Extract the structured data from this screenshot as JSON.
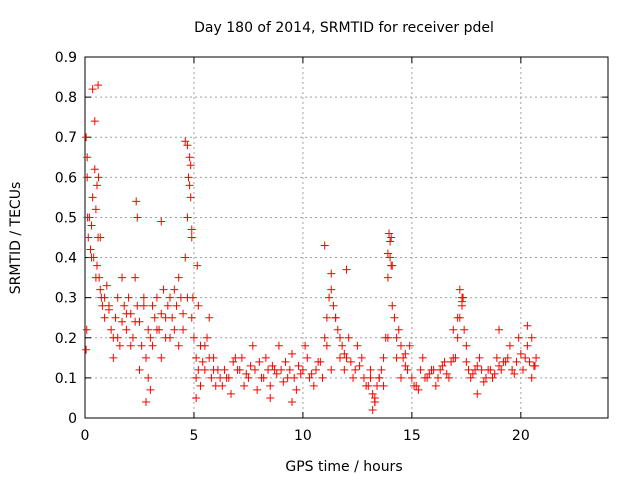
{
  "chart_data": {
    "type": "scatter",
    "title": "Day 180 of 2014, SRMTID for receiver pdel",
    "xlabel": "GPS time / hours",
    "ylabel": "SRMTID / TECUs",
    "xlim": [
      0,
      24
    ],
    "ylim": [
      0,
      0.9
    ],
    "xticks": [
      0,
      5,
      10,
      15,
      20
    ],
    "xtick_labels": [
      "0",
      "5",
      "10",
      "15",
      "20"
    ],
    "yticks": [
      0,
      0.1,
      0.2,
      0.3,
      0.4,
      0.5,
      0.6,
      0.7,
      0.8,
      0.9
    ],
    "ytick_labels": [
      "0",
      "0.1",
      "0.2",
      "0.3",
      "0.4",
      "0.5",
      "0.6",
      "0.7",
      "0.8",
      "0.9"
    ],
    "grid": true,
    "marker": "+",
    "series": [
      {
        "name": "SRMTID",
        "color": "#ff0000",
        "x": [
          0.05,
          0.1,
          0.15,
          0.2,
          0.25,
          0.3,
          0.35,
          0.4,
          0.45,
          0.5,
          0.55,
          0.6,
          0.65,
          0.7,
          0.75,
          0.8,
          0.9,
          1.0,
          1.1,
          1.2,
          1.3,
          1.4,
          1.5,
          1.6,
          1.7,
          1.8,
          1.9,
          2.0,
          2.1,
          2.2,
          2.3,
          2.4,
          2.5,
          2.6,
          2.7,
          2.8,
          2.9,
          3.0,
          3.1,
          3.2,
          3.3,
          3.4,
          3.5,
          3.6,
          3.7,
          3.8,
          3.9,
          4.0,
          4.1,
          4.2,
          4.3,
          4.4,
          4.5,
          4.6,
          4.7,
          4.75,
          4.8,
          4.85,
          4.9,
          4.95,
          5.0,
          5.1,
          5.2,
          5.3,
          5.4,
          5.5,
          5.6,
          5.7,
          5.8,
          5.9,
          6.0,
          6.2,
          6.4,
          6.6,
          6.8,
          7.0,
          7.2,
          7.4,
          7.6,
          7.8,
          8.0,
          8.2,
          8.4,
          8.6,
          8.8,
          9.0,
          9.2,
          9.4,
          9.6,
          9.8,
          10.0,
          10.2,
          10.4,
          10.6,
          10.8,
          11.0,
          11.1,
          11.2,
          11.3,
          11.4,
          11.5,
          11.6,
          11.7,
          11.8,
          11.9,
          12.0,
          12.2,
          12.4,
          12.6,
          12.8,
          13.0,
          13.1,
          13.2,
          13.3,
          13.4,
          13.5,
          13.6,
          13.7,
          13.8,
          13.9,
          14.0,
          14.05,
          14.1,
          14.2,
          14.3,
          14.4,
          14.5,
          14.6,
          14.7,
          14.8,
          15.0,
          15.2,
          15.4,
          15.6,
          15.8,
          16.0,
          16.2,
          16.4,
          16.6,
          16.8,
          17.0,
          17.1,
          17.2,
          17.3,
          17.4,
          17.5,
          17.6,
          17.8,
          18.0,
          18.2,
          18.4,
          18.6,
          18.8,
          19.0,
          19.2,
          19.4,
          19.6,
          19.8,
          20.0,
          20.2,
          20.4,
          20.6,
          20.7,
          0.1,
          0.3,
          0.5,
          0.7,
          0.9,
          1.1,
          1.3,
          1.5,
          1.7,
          1.9,
          2.1,
          2.3,
          2.5,
          2.7,
          2.9,
          3.1,
          3.3,
          3.5,
          3.7,
          3.9,
          4.1,
          4.3,
          4.5,
          4.7,
          4.9,
          5.1,
          5.3,
          5.5,
          5.7,
          5.9,
          6.1,
          6.3,
          6.5,
          6.7,
          6.9,
          7.1,
          7.3,
          7.5,
          7.7,
          7.9,
          8.1,
          8.3,
          8.5,
          8.7,
          8.9,
          9.1,
          9.3,
          9.5,
          9.7,
          9.9,
          10.1,
          10.3,
          10.5,
          10.7,
          10.9,
          11.1,
          11.3,
          11.5,
          11.7,
          11.9,
          12.1,
          12.3,
          12.5,
          12.7,
          12.9,
          13.1,
          13.3,
          13.5,
          13.7,
          13.9,
          14.1,
          14.3,
          14.5,
          14.7,
          14.9,
          15.1,
          15.3,
          15.5,
          15.7,
          15.9,
          16.1,
          16.3,
          16.5,
          16.7,
          16.9,
          17.1,
          17.3,
          17.5,
          17.7,
          17.9,
          18.1,
          18.3,
          18.5,
          18.7,
          18.9,
          19.1,
          19.3,
          19.5,
          19.7,
          19.9,
          20.1,
          20.3,
          20.5,
          20.65,
          0.35,
          0.45,
          0.55,
          0.6,
          0.62,
          4.6,
          4.7,
          4.8,
          4.9,
          4.85,
          13.95,
          14.0,
          14.05,
          13.9,
          0.05,
          0.08,
          0.12,
          2.35,
          2.4,
          3.5,
          11.0,
          11.3,
          12.0,
          13.2,
          13.3,
          16.9,
          17.2,
          17.3,
          17.35,
          3.0,
          2.8,
          5.1,
          5.15,
          5.2,
          8.5,
          9.5,
          18.0,
          19.0,
          20.3,
          20.5
        ],
        "y": [
          0.7,
          0.65,
          0.45,
          0.5,
          0.42,
          0.48,
          0.55,
          0.4,
          0.62,
          0.52,
          0.38,
          0.45,
          0.35,
          0.32,
          0.3,
          0.28,
          0.25,
          0.33,
          0.27,
          0.22,
          0.2,
          0.25,
          0.3,
          0.18,
          0.24,
          0.28,
          0.22,
          0.3,
          0.26,
          0.2,
          0.35,
          0.28,
          0.24,
          0.18,
          0.3,
          0.15,
          0.22,
          0.2,
          0.28,
          0.25,
          0.3,
          0.22,
          0.26,
          0.32,
          0.2,
          0.28,
          0.3,
          0.25,
          0.22,
          0.28,
          0.35,
          0.3,
          0.26,
          0.4,
          0.5,
          0.6,
          0.65,
          0.55,
          0.45,
          0.3,
          0.2,
          0.15,
          0.12,
          0.18,
          0.14,
          0.12,
          0.2,
          0.15,
          0.1,
          0.12,
          0.08,
          0.1,
          0.12,
          0.1,
          0.14,
          0.12,
          0.15,
          0.11,
          0.13,
          0.12,
          0.14,
          0.1,
          0.12,
          0.13,
          0.11,
          0.12,
          0.14,
          0.12,
          0.1,
          0.13,
          0.12,
          0.15,
          0.11,
          0.12,
          0.14,
          0.2,
          0.25,
          0.3,
          0.32,
          0.28,
          0.25,
          0.22,
          0.2,
          0.18,
          0.16,
          0.15,
          0.14,
          0.12,
          0.13,
          0.1,
          0.08,
          0.1,
          0.06,
          0.05,
          0.08,
          0.1,
          0.12,
          0.15,
          0.2,
          0.35,
          0.4,
          0.45,
          0.38,
          0.25,
          0.2,
          0.22,
          0.18,
          0.15,
          0.13,
          0.12,
          0.1,
          0.08,
          0.12,
          0.1,
          0.11,
          0.12,
          0.1,
          0.13,
          0.11,
          0.14,
          0.15,
          0.2,
          0.25,
          0.28,
          0.22,
          0.18,
          0.12,
          0.11,
          0.13,
          0.12,
          0.1,
          0.12,
          0.11,
          0.13,
          0.14,
          0.15,
          0.12,
          0.14,
          0.16,
          0.15,
          0.14,
          0.13,
          0.15,
          0.6,
          0.4,
          0.35,
          0.45,
          0.3,
          0.28,
          0.15,
          0.2,
          0.35,
          0.26,
          0.18,
          0.24,
          0.12,
          0.28,
          0.1,
          0.18,
          0.22,
          0.15,
          0.25,
          0.2,
          0.32,
          0.18,
          0.22,
          0.3,
          0.25,
          0.1,
          0.08,
          0.18,
          0.25,
          0.15,
          0.12,
          0.08,
          0.1,
          0.06,
          0.15,
          0.12,
          0.08,
          0.1,
          0.18,
          0.07,
          0.1,
          0.15,
          0.08,
          0.12,
          0.18,
          0.09,
          0.1,
          0.16,
          0.07,
          0.11,
          0.18,
          0.1,
          0.08,
          0.14,
          0.1,
          0.18,
          0.12,
          0.25,
          0.15,
          0.12,
          0.2,
          0.1,
          0.18,
          0.15,
          0.08,
          0.12,
          0.04,
          0.1,
          0.08,
          0.2,
          0.28,
          0.15,
          0.1,
          0.16,
          0.18,
          0.08,
          0.07,
          0.15,
          0.1,
          0.12,
          0.08,
          0.12,
          0.14,
          0.1,
          0.15,
          0.25,
          0.3,
          0.14,
          0.1,
          0.12,
          0.15,
          0.09,
          0.12,
          0.1,
          0.15,
          0.12,
          0.14,
          0.18,
          0.11,
          0.2,
          0.12,
          0.18,
          0.1,
          0.13,
          0.82,
          0.74,
          0.58,
          0.83,
          0.6,
          0.69,
          0.68,
          0.58,
          0.47,
          0.63,
          0.46,
          0.44,
          0.38,
          0.41,
          0.17,
          0.22,
          0.5,
          0.54,
          0.5,
          0.49,
          0.43,
          0.36,
          0.37,
          0.02,
          0.04,
          0.22,
          0.32,
          0.29,
          0.3,
          0.07,
          0.04,
          0.05,
          0.38,
          0.28,
          0.05,
          0.04,
          0.06,
          0.22,
          0.23,
          0.2
        ]
      }
    ]
  }
}
